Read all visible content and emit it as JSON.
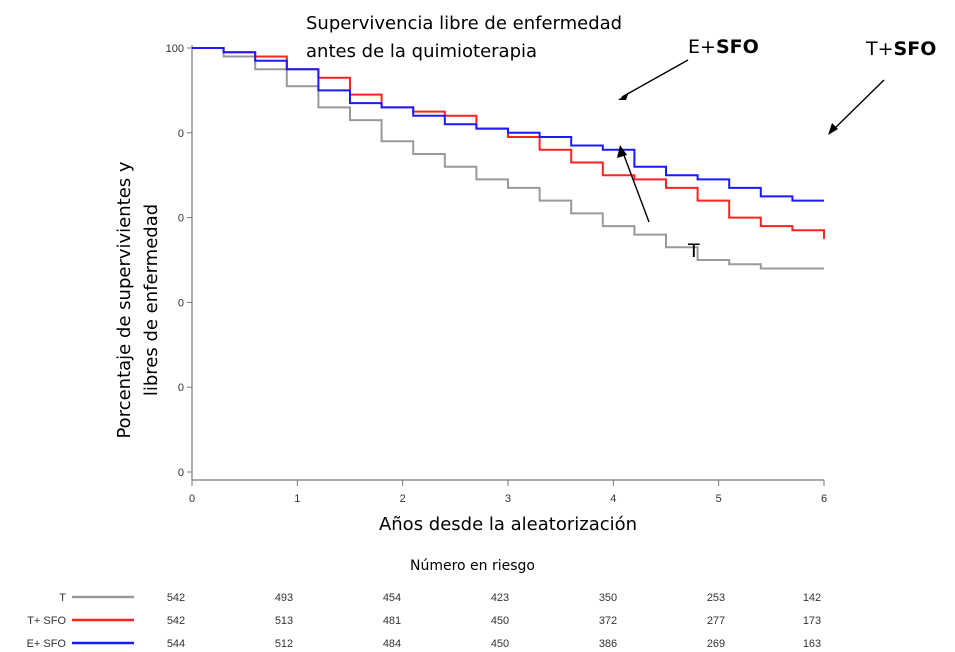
{
  "chart_data": {
    "type": "line",
    "title_lines": [
      "Supervivencia libre de enfermedad",
      "antes de la quimioterapia"
    ],
    "xlabel": "Años desde la aleatorización",
    "ylabel_lines": [
      "Porcentaje de supervivientes y",
      "libres de enfermedad"
    ],
    "xlim": [
      0,
      6
    ],
    "ylim": [
      0,
      100
    ],
    "x_ticks": [
      "0",
      "1",
      "2",
      "3",
      "4",
      "5",
      "6"
    ],
    "y_ticks": [
      "0",
      "0",
      "0",
      "0",
      "0",
      "100"
    ],
    "series": [
      {
        "name": "T",
        "color": "#999999",
        "x": [
          0,
          0.3,
          0.6,
          0.9,
          1.2,
          1.5,
          1.8,
          2.1,
          2.4,
          2.7,
          3.0,
          3.3,
          3.6,
          3.9,
          4.2,
          4.5,
          4.8,
          5.1,
          5.4,
          5.7,
          6.0
        ],
        "y": [
          100,
          98,
          95,
          91,
          86,
          83,
          78,
          75,
          72,
          69,
          67,
          64,
          61,
          58,
          56,
          53,
          50,
          49,
          48,
          48,
          48
        ]
      },
      {
        "name": "T+ SFO",
        "color": "#ff2020",
        "x": [
          0,
          0.3,
          0.6,
          0.9,
          1.2,
          1.5,
          1.8,
          2.1,
          2.4,
          2.7,
          3.0,
          3.3,
          3.6,
          3.9,
          4.2,
          4.5,
          4.8,
          5.1,
          5.4,
          5.7,
          6.0
        ],
        "y": [
          100,
          99,
          98,
          95,
          93,
          89,
          86,
          85,
          84,
          81,
          79,
          76,
          73,
          70,
          69,
          67,
          64,
          60,
          58,
          57,
          55
        ]
      },
      {
        "name": "E+ SFO",
        "color": "#1a1aff",
        "x": [
          0,
          0.3,
          0.6,
          0.9,
          1.2,
          1.5,
          1.8,
          2.1,
          2.4,
          2.7,
          3.0,
          3.3,
          3.6,
          3.9,
          4.2,
          4.5,
          4.8,
          5.1,
          5.4,
          5.7,
          6.0
        ],
        "y": [
          100,
          99,
          97,
          95,
          90,
          87,
          86,
          84,
          82,
          81,
          80,
          79,
          77,
          76,
          72,
          70,
          69,
          67,
          65,
          64,
          64
        ]
      }
    ],
    "annotations": [
      {
        "id": "e",
        "prefix": "E+",
        "bold": "SFO"
      },
      {
        "id": "t_sfo",
        "prefix": "T+",
        "bold": "SFO"
      },
      {
        "id": "t",
        "prefix": "T",
        "bold": ""
      }
    ],
    "risk_table": {
      "title": "Número en riesgo",
      "rows": [
        {
          "label": "T",
          "color": "#999999",
          "values": [
            "542",
            "493",
            "454",
            "423",
            "350",
            "253",
            "142"
          ]
        },
        {
          "label": "T+ SFO",
          "color": "#ff2020",
          "values": [
            "542",
            "513",
            "481",
            "450",
            "372",
            "277",
            "173"
          ]
        },
        {
          "label": "E+ SFO",
          "color": "#1a1aff",
          "values": [
            "544",
            "512",
            "484",
            "450",
            "386",
            "269",
            "163"
          ]
        }
      ]
    }
  }
}
